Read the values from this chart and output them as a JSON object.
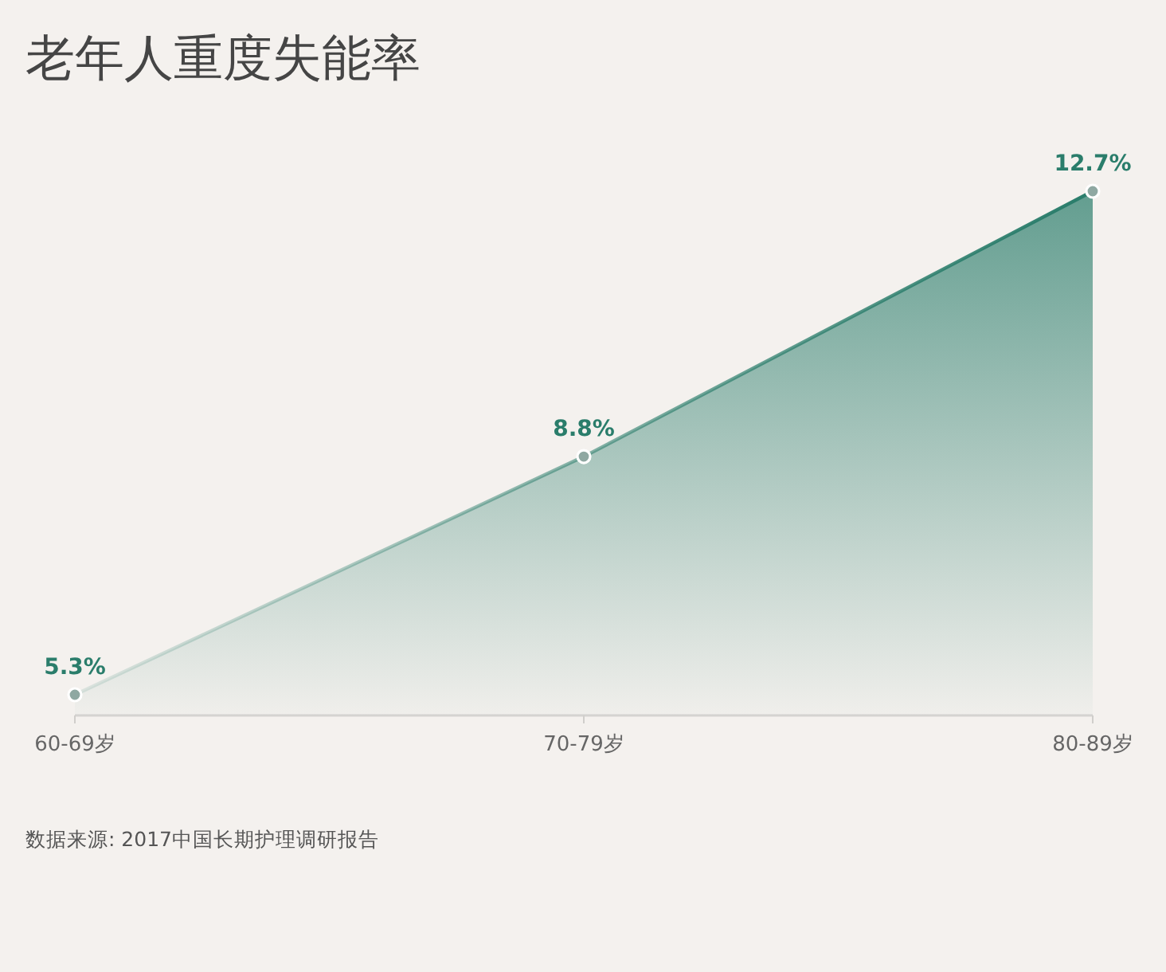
{
  "chart_data": {
    "type": "area",
    "title": "老年人重度失能率",
    "categories": [
      "60-69岁",
      "70-79岁",
      "80-89岁"
    ],
    "values": [
      5.3,
      8.8,
      12.7
    ],
    "color": "#2a7d6b",
    "value_labels": [
      "5.3%",
      "8.8%",
      "12.7%"
    ],
    "tick_labels": "x",
    "marker": "circle",
    "annotations": [
      "数据来源: 2017中国长期护理调研报告"
    ]
  }
}
